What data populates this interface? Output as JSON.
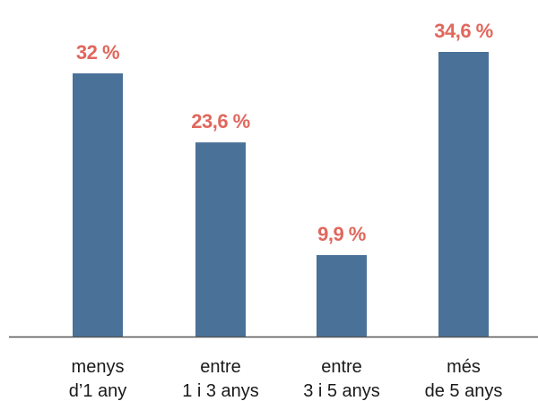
{
  "chart_data": {
    "type": "bar",
    "categories": [
      [
        "menys",
        "d’1 any"
      ],
      [
        "entre",
        "1 i 3 anys"
      ],
      [
        "entre",
        "3 i 5 anys"
      ],
      [
        "més",
        "de 5 anys"
      ]
    ],
    "values": [
      32,
      23.6,
      9.9,
      34.6
    ],
    "value_labels": [
      "32 %",
      "23,6 %",
      "9,9 %",
      "34,6 %"
    ],
    "title": "",
    "xlabel": "",
    "ylabel": "",
    "ylim": [
      0,
      34.6
    ],
    "grid": false,
    "legend": "none",
    "colors": {
      "bar": "#4a7198",
      "value_label": "#e0675c",
      "axis": "#555555",
      "category_label": "#1a1a1a"
    }
  }
}
